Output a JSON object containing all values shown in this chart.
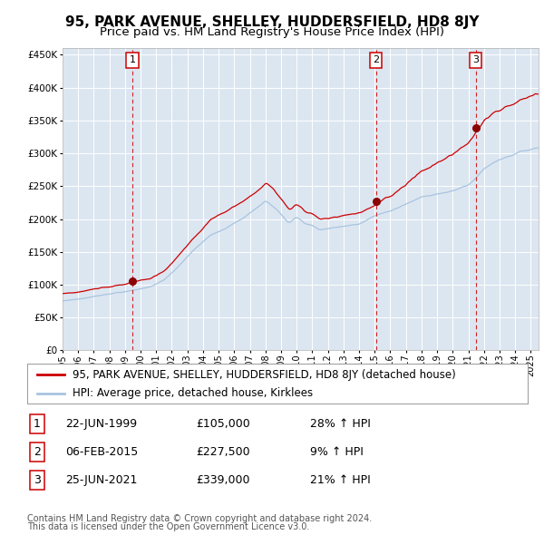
{
  "title": "95, PARK AVENUE, SHELLEY, HUDDERSFIELD, HD8 8JY",
  "subtitle": "Price paid vs. HM Land Registry's House Price Index (HPI)",
  "legend_property": "95, PARK AVENUE, SHELLEY, HUDDERSFIELD, HD8 8JY (detached house)",
  "legend_hpi": "HPI: Average price, detached house, Kirklees",
  "footer1": "Contains HM Land Registry data © Crown copyright and database right 2024.",
  "footer2": "This data is licensed under the Open Government Licence v3.0.",
  "transactions": [
    {
      "num": 1,
      "date": "22-JUN-1999",
      "price": 105000,
      "pct": "28%",
      "dir": "↑"
    },
    {
      "num": 2,
      "date": "06-FEB-2015",
      "price": 227500,
      "pct": "9%",
      "dir": "↑"
    },
    {
      "num": 3,
      "date": "25-JUN-2021",
      "price": 339000,
      "pct": "21%",
      "dir": "↑"
    }
  ],
  "transaction_dates_decimal": [
    1999.47,
    2015.09,
    2021.48
  ],
  "transaction_prices": [
    105000,
    227500,
    339000
  ],
  "ylim": [
    0,
    460000
  ],
  "yticks": [
    0,
    50000,
    100000,
    150000,
    200000,
    250000,
    300000,
    350000,
    400000,
    450000
  ],
  "xlim_start": 1995.0,
  "xlim_end": 2025.5,
  "background_color": "#dce6f1",
  "grid_color": "#ffffff",
  "line_color_property": "#cc0000",
  "line_color_hpi": "#a8c4e0",
  "marker_color": "#8b0000",
  "dashed_line_color": "#cc0000",
  "title_fontsize": 11,
  "subtitle_fontsize": 9.5,
  "tick_fontsize": 7.5,
  "legend_fontsize": 8.5,
  "table_fontsize": 9,
  "footer_fontsize": 7
}
